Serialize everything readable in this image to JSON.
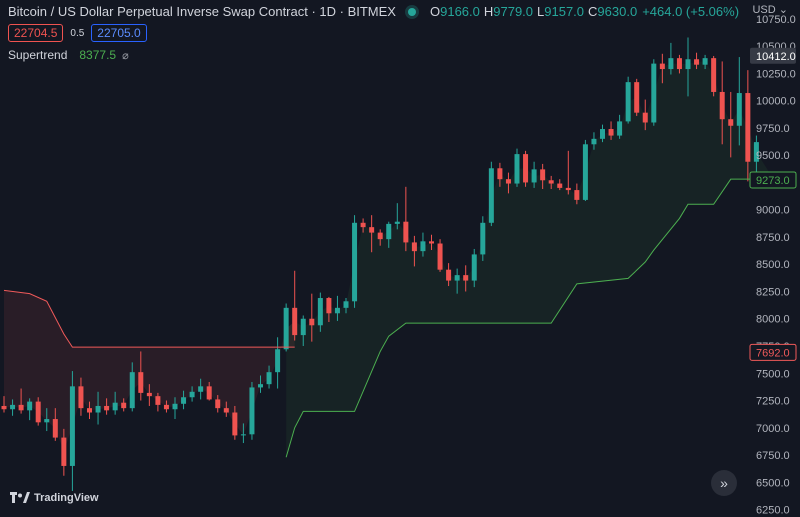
{
  "header": {
    "symbol": "Bitcoin / US Dollar Perpetual Inverse Swap Contract · 1D · BITMEX",
    "o_label": "O",
    "o": "9166.0",
    "h_label": "H",
    "h": "9779.0",
    "l_label": "L",
    "l": "9157.0",
    "c_label": "C",
    "c": "9630.0",
    "change": "+464.0 (+5.06%)"
  },
  "order": {
    "sell": "22704.5",
    "spread": "0.5",
    "buy": "22705.0"
  },
  "indicator": {
    "name": "Supertrend",
    "value": "8377.5",
    "eye": "⌀"
  },
  "currency": "USD",
  "branding": "TradingView",
  "colors": {
    "up": "#26a69a",
    "down": "#ef5350",
    "st_up": "#4caf50",
    "st_down": "#f05a5a"
  },
  "chart_data": {
    "type": "candlestick",
    "y_ticks": [
      10750,
      10500,
      10250,
      10000,
      9750,
      9500,
      9250,
      9000,
      8750,
      8500,
      8250,
      8000,
      7750,
      7500,
      7250,
      7000,
      6750,
      6500,
      6250
    ],
    "ylim": [
      6200,
      10850
    ],
    "price_labels": [
      {
        "text": "10412.0",
        "value": 10412,
        "style": "last"
      },
      {
        "text": "9273.0",
        "value": 9273,
        "style": "up"
      },
      {
        "text": "7692.0",
        "value": 7692,
        "style": "down"
      }
    ],
    "candles": [
      [
        7200,
        7290,
        7140,
        7170
      ],
      [
        7170,
        7260,
        7110,
        7210
      ],
      [
        7210,
        7360,
        7130,
        7160
      ],
      [
        7160,
        7270,
        7070,
        7240
      ],
      [
        7240,
        7280,
        7020,
        7050
      ],
      [
        7050,
        7180,
        6970,
        7080
      ],
      [
        7080,
        7180,
        6880,
        6910
      ],
      [
        6910,
        6990,
        6560,
        6650
      ],
      [
        6650,
        7520,
        6420,
        7380
      ],
      [
        7380,
        7460,
        7110,
        7180
      ],
      [
        7180,
        7240,
        7080,
        7140
      ],
      [
        7140,
        7330,
        7030,
        7200
      ],
      [
        7200,
        7270,
        7120,
        7160
      ],
      [
        7160,
        7330,
        7120,
        7230
      ],
      [
        7230,
        7270,
        7150,
        7180
      ],
      [
        7180,
        7600,
        7150,
        7510
      ],
      [
        7510,
        7700,
        7250,
        7320
      ],
      [
        7320,
        7400,
        7200,
        7290
      ],
      [
        7290,
        7320,
        7150,
        7210
      ],
      [
        7210,
        7250,
        7140,
        7170
      ],
      [
        7170,
        7280,
        7080,
        7220
      ],
      [
        7220,
        7340,
        7170,
        7280
      ],
      [
        7280,
        7380,
        7240,
        7330
      ],
      [
        7330,
        7450,
        7260,
        7380
      ],
      [
        7380,
        7420,
        7250,
        7260
      ],
      [
        7260,
        7300,
        7140,
        7180
      ],
      [
        7180,
        7240,
        7100,
        7140
      ],
      [
        7140,
        7200,
        6890,
        6930
      ],
      [
        6930,
        7040,
        6860,
        6940
      ],
      [
        6940,
        7420,
        6890,
        7370
      ],
      [
        7370,
        7480,
        7320,
        7400
      ],
      [
        7400,
        7570,
        7360,
        7510
      ],
      [
        7510,
        7830,
        7360,
        7720
      ],
      [
        7720,
        8140,
        7700,
        8100
      ],
      [
        8100,
        8440,
        7800,
        7850
      ],
      [
        7850,
        8030,
        7750,
        8000
      ],
      [
        8000,
        8230,
        7790,
        7940
      ],
      [
        7940,
        8240,
        7880,
        8190
      ],
      [
        8190,
        8200,
        7970,
        8050
      ],
      [
        8050,
        8210,
        7980,
        8100
      ],
      [
        8100,
        8190,
        8050,
        8160
      ],
      [
        8160,
        8950,
        8100,
        8880
      ],
      [
        8880,
        8920,
        8790,
        8840
      ],
      [
        8840,
        8950,
        8610,
        8790
      ],
      [
        8790,
        8820,
        8670,
        8730
      ],
      [
        8730,
        8890,
        8650,
        8870
      ],
      [
        8870,
        9060,
        8820,
        8890
      ],
      [
        8890,
        9210,
        8620,
        8700
      ],
      [
        8700,
        8760,
        8480,
        8620
      ],
      [
        8620,
        8790,
        8570,
        8710
      ],
      [
        8710,
        8770,
        8630,
        8690
      ],
      [
        8690,
        8730,
        8430,
        8450
      ],
      [
        8450,
        8510,
        8300,
        8350
      ],
      [
        8350,
        8460,
        8230,
        8400
      ],
      [
        8400,
        8490,
        8250,
        8350
      ],
      [
        8350,
        8640,
        8290,
        8590
      ],
      [
        8590,
        8940,
        8530,
        8880
      ],
      [
        8880,
        9440,
        8850,
        9380
      ],
      [
        9380,
        9430,
        9210,
        9280
      ],
      [
        9280,
        9340,
        9150,
        9240
      ],
      [
        9240,
        9560,
        9210,
        9510
      ],
      [
        9510,
        9540,
        9210,
        9250
      ],
      [
        9250,
        9440,
        9200,
        9370
      ],
      [
        9370,
        9420,
        9190,
        9270
      ],
      [
        9270,
        9310,
        9190,
        9240
      ],
      [
        9240,
        9280,
        9180,
        9200
      ],
      [
        9200,
        9540,
        9140,
        9180
      ],
      [
        9180,
        9240,
        9050,
        9090
      ],
      [
        9090,
        9640,
        9080,
        9600
      ],
      [
        9600,
        9710,
        9550,
        9650
      ],
      [
        9650,
        9780,
        9620,
        9740
      ],
      [
        9740,
        9810,
        9640,
        9680
      ],
      [
        9680,
        9870,
        9650,
        9810
      ],
      [
        9810,
        10220,
        9790,
        10170
      ],
      [
        10170,
        10200,
        9860,
        9890
      ],
      [
        9890,
        10010,
        9730,
        9800
      ],
      [
        9800,
        10380,
        9770,
        10340
      ],
      [
        10340,
        10430,
        10160,
        10290
      ],
      [
        10290,
        10530,
        10240,
        10390
      ],
      [
        10390,
        10420,
        10250,
        10290
      ],
      [
        10290,
        10580,
        10040,
        10380
      ],
      [
        10380,
        10440,
        10290,
        10330
      ],
      [
        10330,
        10420,
        10290,
        10390
      ],
      [
        10390,
        10410,
        10040,
        10080
      ],
      [
        10080,
        10360,
        9600,
        9830
      ],
      [
        9830,
        10080,
        9480,
        9770
      ],
      [
        9770,
        10400,
        9590,
        10070
      ],
      [
        10070,
        10280,
        9260,
        9440
      ],
      [
        9440,
        9680,
        9330,
        9620
      ]
    ],
    "supertrend_down": [
      [
        0,
        8260
      ],
      [
        3,
        8230
      ],
      [
        5,
        8160
      ],
      [
        7,
        7860
      ],
      [
        8,
        7740
      ],
      [
        34,
        7740
      ]
    ],
    "supertrend_up": [
      [
        33,
        6730
      ],
      [
        34,
        7000
      ],
      [
        35,
        7150
      ],
      [
        36,
        7150
      ],
      [
        41,
        7150
      ],
      [
        44,
        7700
      ],
      [
        45,
        7840
      ],
      [
        47,
        7960
      ],
      [
        64,
        7960
      ],
      [
        67,
        8320
      ],
      [
        73,
        8370
      ],
      [
        75,
        8520
      ],
      [
        76,
        8630
      ],
      [
        79,
        8920
      ],
      [
        80,
        9050
      ],
      [
        83,
        9050
      ],
      [
        85,
        9280
      ],
      [
        88,
        9280
      ],
      [
        90,
        9280
      ]
    ]
  }
}
